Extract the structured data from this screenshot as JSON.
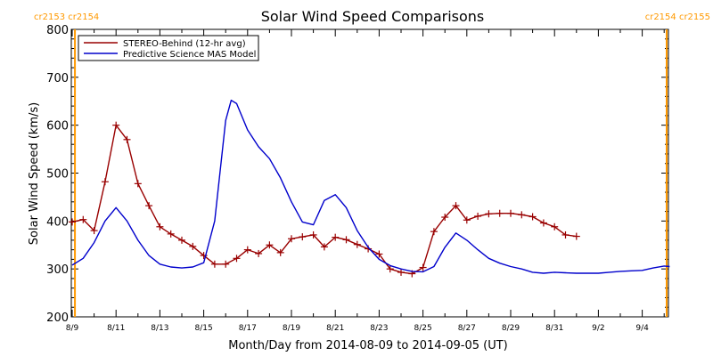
{
  "chart_data": {
    "type": "line",
    "title": "Solar Wind Speed Comparisons",
    "xlabel": "Month/Day from 2014-08-09 to 2014-09-05 (UT)",
    "ylabel": "Solar Wind Speed (km/s)",
    "x_range": [
      "2014-08-09",
      "2014-09-05"
    ],
    "ylim": [
      200,
      800
    ],
    "y_ticks": [
      200,
      300,
      400,
      500,
      600,
      700,
      800
    ],
    "x_ticks": [
      {
        "date": "2014-08-09",
        "label": "8/9"
      },
      {
        "date": "2014-08-11",
        "label": "8/11"
      },
      {
        "date": "2014-08-13",
        "label": "8/13"
      },
      {
        "date": "2014-08-15",
        "label": "8/15"
      },
      {
        "date": "2014-08-17",
        "label": "8/17"
      },
      {
        "date": "2014-08-19",
        "label": "8/19"
      },
      {
        "date": "2014-08-21",
        "label": "8/21"
      },
      {
        "date": "2014-08-23",
        "label": "8/23"
      },
      {
        "date": "2014-08-25",
        "label": "8/25"
      },
      {
        "date": "2014-08-27",
        "label": "8/27"
      },
      {
        "date": "2014-08-29",
        "label": "8/29"
      },
      {
        "date": "2014-08-31",
        "label": "8/31"
      },
      {
        "date": "2014-09-02",
        "label": "9/2"
      },
      {
        "date": "2014-09-04",
        "label": "9/4"
      }
    ],
    "carrington_markers": [
      {
        "date": "2014-08-09 03:00",
        "label": "cr2153 cr2154",
        "color": "#ff9900"
      },
      {
        "date": "2014-09-05 09:00",
        "label": "cr2154 cr2155",
        "color": "#ff9900"
      }
    ],
    "legend": {
      "placement": "top-left",
      "boxed": true
    },
    "grid": false,
    "series": [
      {
        "name": "STEREO-Behind (12-hr avg)",
        "color": "#990000",
        "marker": "plus",
        "points": [
          [
            "2014-08-09 00:00",
            398
          ],
          [
            "2014-08-09 12:00",
            403
          ],
          [
            "2014-08-10 00:00",
            380
          ],
          [
            "2014-08-10 12:00",
            482
          ],
          [
            "2014-08-11 00:00",
            600
          ],
          [
            "2014-08-11 12:00",
            570
          ],
          [
            "2014-08-12 00:00",
            478
          ],
          [
            "2014-08-12 12:00",
            432
          ],
          [
            "2014-08-13 00:00",
            388
          ],
          [
            "2014-08-13 12:00",
            373
          ],
          [
            "2014-08-14 00:00",
            360
          ],
          [
            "2014-08-14 12:00",
            347
          ],
          [
            "2014-08-15 00:00",
            328
          ],
          [
            "2014-08-15 12:00",
            310
          ],
          [
            "2014-08-16 00:00",
            310
          ],
          [
            "2014-08-16 12:00",
            322
          ],
          [
            "2014-08-17 00:00",
            340
          ],
          [
            "2014-08-17 12:00",
            332
          ],
          [
            "2014-08-18 00:00",
            350
          ],
          [
            "2014-08-18 12:00",
            334
          ],
          [
            "2014-08-19 00:00",
            363
          ],
          [
            "2014-08-19 12:00",
            367
          ],
          [
            "2014-08-20 00:00",
            371
          ],
          [
            "2014-08-20 12:00",
            346
          ],
          [
            "2014-08-21 00:00",
            366
          ],
          [
            "2014-08-21 12:00",
            361
          ],
          [
            "2014-08-22 00:00",
            351
          ],
          [
            "2014-08-22 12:00",
            342
          ],
          [
            "2014-08-23 00:00",
            331
          ],
          [
            "2014-08-23 12:00",
            300
          ],
          [
            "2014-08-24 00:00",
            293
          ],
          [
            "2014-08-24 12:00",
            290
          ],
          [
            "2014-08-25 00:00",
            303
          ],
          [
            "2014-08-25 12:00",
            378
          ],
          [
            "2014-08-26 00:00",
            408
          ],
          [
            "2014-08-26 12:00",
            432
          ],
          [
            "2014-08-27 00:00",
            402
          ],
          [
            "2014-08-27 12:00",
            410
          ],
          [
            "2014-08-28 00:00",
            415
          ],
          [
            "2014-08-28 12:00",
            416
          ],
          [
            "2014-08-29 00:00",
            416
          ],
          [
            "2014-08-29 12:00",
            413
          ],
          [
            "2014-08-30 00:00",
            409
          ],
          [
            "2014-08-30 12:00",
            396
          ],
          [
            "2014-08-31 00:00",
            388
          ],
          [
            "2014-08-31 12:00",
            371
          ],
          [
            "2014-09-01 00:00",
            368
          ]
        ]
      },
      {
        "name": "Predictive Science MAS Model",
        "color": "#0000cc",
        "marker": "none",
        "points": [
          [
            "2014-08-09 00:00",
            308
          ],
          [
            "2014-08-09 12:00",
            322
          ],
          [
            "2014-08-10 00:00",
            355
          ],
          [
            "2014-08-10 12:00",
            400
          ],
          [
            "2014-08-11 00:00",
            428
          ],
          [
            "2014-08-11 12:00",
            400
          ],
          [
            "2014-08-12 00:00",
            360
          ],
          [
            "2014-08-12 12:00",
            328
          ],
          [
            "2014-08-13 00:00",
            310
          ],
          [
            "2014-08-13 12:00",
            304
          ],
          [
            "2014-08-14 00:00",
            302
          ],
          [
            "2014-08-14 12:00",
            304
          ],
          [
            "2014-08-15 00:00",
            313
          ],
          [
            "2014-08-15 12:00",
            400
          ],
          [
            "2014-08-16 00:00",
            610
          ],
          [
            "2014-08-16 06:00",
            652
          ],
          [
            "2014-08-16 12:00",
            645
          ],
          [
            "2014-08-17 00:00",
            590
          ],
          [
            "2014-08-17 12:00",
            555
          ],
          [
            "2014-08-18 00:00",
            530
          ],
          [
            "2014-08-18 12:00",
            490
          ],
          [
            "2014-08-19 00:00",
            440
          ],
          [
            "2014-08-19 12:00",
            398
          ],
          [
            "2014-08-20 00:00",
            392
          ],
          [
            "2014-08-20 12:00",
            443
          ],
          [
            "2014-08-21 00:00",
            455
          ],
          [
            "2014-08-21 12:00",
            428
          ],
          [
            "2014-08-22 00:00",
            380
          ],
          [
            "2014-08-22 12:00",
            345
          ],
          [
            "2014-08-23 00:00",
            320
          ],
          [
            "2014-08-23 12:00",
            307
          ],
          [
            "2014-08-24 00:00",
            300
          ],
          [
            "2014-08-24 12:00",
            295
          ],
          [
            "2014-08-25 00:00",
            294
          ],
          [
            "2014-08-25 12:00",
            305
          ],
          [
            "2014-08-26 00:00",
            345
          ],
          [
            "2014-08-26 12:00",
            375
          ],
          [
            "2014-08-27 00:00",
            360
          ],
          [
            "2014-08-27 12:00",
            340
          ],
          [
            "2014-08-28 00:00",
            322
          ],
          [
            "2014-08-28 12:00",
            312
          ],
          [
            "2014-08-29 00:00",
            305
          ],
          [
            "2014-08-29 12:00",
            300
          ],
          [
            "2014-08-30 00:00",
            293
          ],
          [
            "2014-08-30 12:00",
            291
          ],
          [
            "2014-08-31 00:00",
            293
          ],
          [
            "2014-08-31 12:00",
            292
          ],
          [
            "2014-09-01 00:00",
            291
          ],
          [
            "2014-09-01 12:00",
            291
          ],
          [
            "2014-09-02 00:00",
            291
          ],
          [
            "2014-09-02 12:00",
            293
          ],
          [
            "2014-09-03 00:00",
            295
          ],
          [
            "2014-09-03 12:00",
            296
          ],
          [
            "2014-09-04 00:00",
            297
          ],
          [
            "2014-09-04 12:00",
            302
          ],
          [
            "2014-09-05 00:00",
            306
          ],
          [
            "2014-09-05 06:00",
            305
          ]
        ]
      }
    ]
  }
}
